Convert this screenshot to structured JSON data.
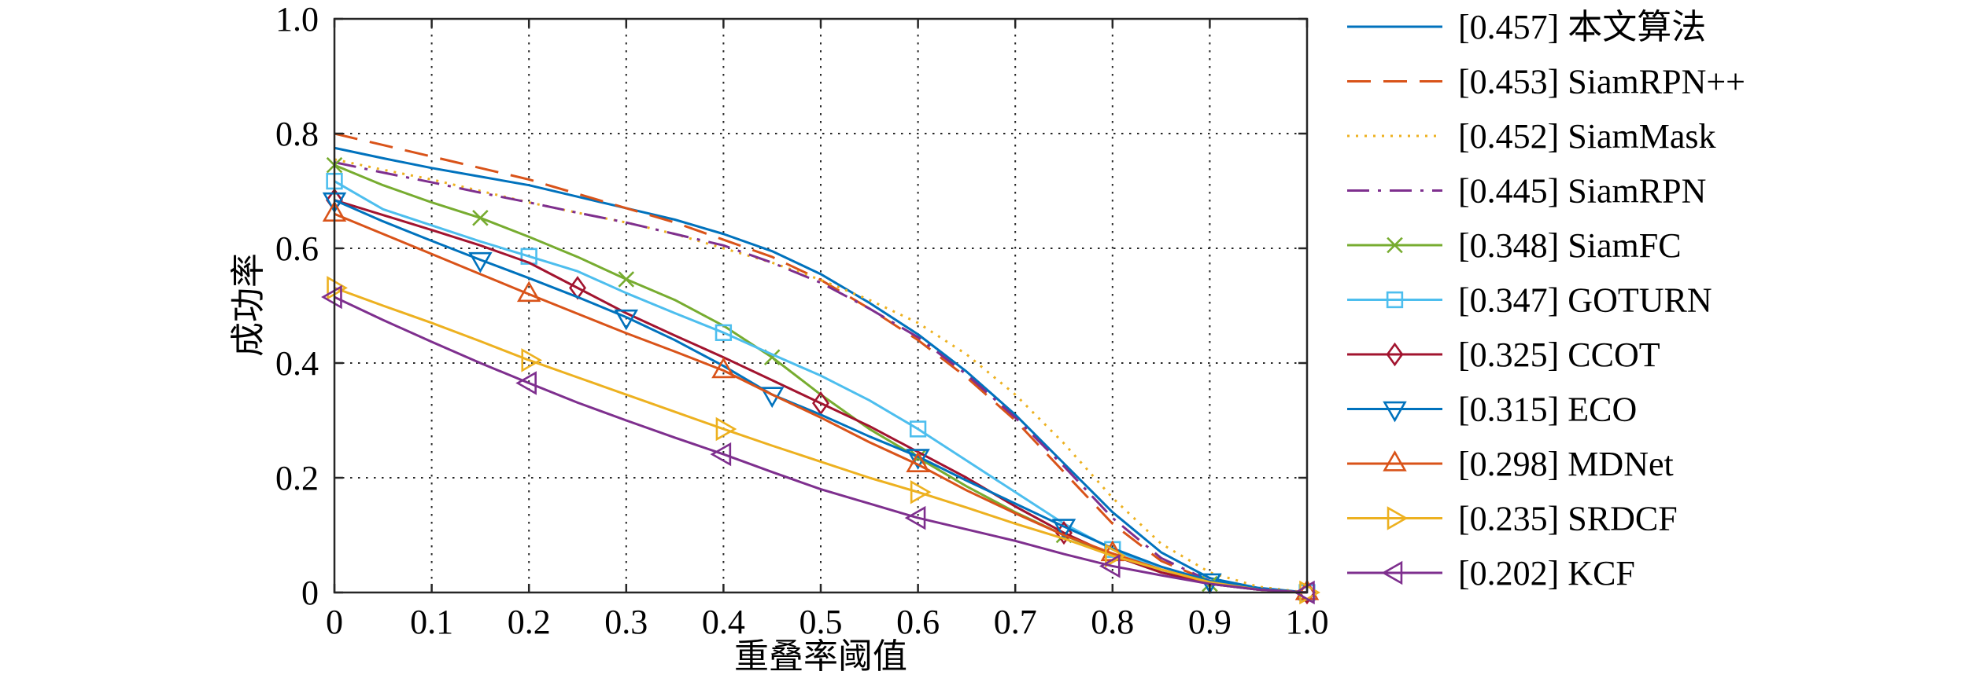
{
  "chart_data": {
    "type": "line",
    "xlabel": "重叠率阈值",
    "ylabel": "成功率",
    "xlim": [
      0,
      1
    ],
    "ylim": [
      0,
      1
    ],
    "x_ticks": [
      0,
      0.1,
      0.2,
      0.3,
      0.4,
      0.5,
      0.6,
      0.7,
      0.8,
      0.9,
      1.0
    ],
    "x_tick_labels": [
      "0",
      "0.1",
      "0.2",
      "0.3",
      "0.4",
      "0.5",
      "0.6",
      "0.7",
      "0.8",
      "0.9",
      "1.0"
    ],
    "y_ticks": [
      0,
      0.2,
      0.4,
      0.6,
      0.8,
      1.0
    ],
    "y_tick_labels": [
      "0",
      "0.2",
      "0.4",
      "0.6",
      "0.8",
      "1.0"
    ],
    "grid": true,
    "legend_position": "outside-right",
    "x": [
      0,
      0.05,
      0.1,
      0.15,
      0.2,
      0.25,
      0.3,
      0.35,
      0.4,
      0.45,
      0.5,
      0.55,
      0.6,
      0.65,
      0.7,
      0.75,
      0.8,
      0.85,
      0.9,
      0.95,
      1.0
    ],
    "series": [
      {
        "name": "[0.457] 本文算法",
        "color": "#0072BD",
        "line_style": "solid",
        "marker": "none",
        "marker_x": [],
        "values": [
          0.775,
          0.757,
          0.74,
          0.725,
          0.71,
          0.69,
          0.67,
          0.65,
          0.625,
          0.595,
          0.555,
          0.505,
          0.45,
          0.385,
          0.31,
          0.225,
          0.14,
          0.07,
          0.025,
          0.008,
          0
        ]
      },
      {
        "name": "[0.453] SiamRPN++",
        "color": "#D95319",
        "line_style": "dashed",
        "marker": "none",
        "marker_x": [],
        "values": [
          0.8,
          0.78,
          0.76,
          0.74,
          0.72,
          0.695,
          0.67,
          0.645,
          0.615,
          0.585,
          0.545,
          0.495,
          0.44,
          0.375,
          0.3,
          0.21,
          0.12,
          0.055,
          0.02,
          0.005,
          0
        ]
      },
      {
        "name": "[0.452] SiamMask",
        "color": "#EDB120",
        "line_style": "dotted",
        "marker": "none",
        "marker_x": [],
        "values": [
          0.755,
          0.737,
          0.72,
          0.7,
          0.68,
          0.662,
          0.645,
          0.625,
          0.6,
          0.575,
          0.545,
          0.51,
          0.47,
          0.415,
          0.345,
          0.26,
          0.165,
          0.085,
          0.035,
          0.01,
          0
        ]
      },
      {
        "name": "[0.445] SiamRPN",
        "color": "#7E2F8E",
        "line_style": "dashdot",
        "marker": "none",
        "marker_x": [],
        "values": [
          0.75,
          0.732,
          0.715,
          0.697,
          0.68,
          0.662,
          0.645,
          0.625,
          0.605,
          0.575,
          0.54,
          0.495,
          0.445,
          0.38,
          0.305,
          0.22,
          0.13,
          0.06,
          0.02,
          0.005,
          0
        ]
      },
      {
        "name": "[0.348] SiamFC",
        "color": "#77AC30",
        "line_style": "solid",
        "marker": "x",
        "marker_x": [
          0,
          0.15,
          0.3,
          0.45,
          0.6,
          0.75,
          0.9
        ],
        "values": [
          0.745,
          0.71,
          0.68,
          0.653,
          0.62,
          0.585,
          0.546,
          0.51,
          0.465,
          0.41,
          0.345,
          0.285,
          0.235,
          0.185,
          0.14,
          0.1,
          0.065,
          0.035,
          0.015,
          0.005,
          0
        ]
      },
      {
        "name": "[0.347] GOTURN",
        "color": "#4DBEEE",
        "line_style": "solid",
        "marker": "square",
        "marker_x": [
          0,
          0.2,
          0.4,
          0.6,
          0.8,
          1.0
        ],
        "values": [
          0.717,
          0.668,
          0.64,
          0.612,
          0.586,
          0.56,
          0.522,
          0.487,
          0.453,
          0.415,
          0.378,
          0.335,
          0.285,
          0.23,
          0.175,
          0.12,
          0.075,
          0.04,
          0.015,
          0.005,
          0
        ]
      },
      {
        "name": "[0.325] CCOT",
        "color": "#A2142F",
        "line_style": "solid",
        "marker": "diamond",
        "marker_x": [
          0,
          0.25,
          0.5,
          0.75,
          1.0
        ],
        "values": [
          0.684,
          0.658,
          0.632,
          0.605,
          0.575,
          0.531,
          0.487,
          0.448,
          0.41,
          0.37,
          0.33,
          0.29,
          0.245,
          0.2,
          0.15,
          0.104,
          0.065,
          0.035,
          0.015,
          0.005,
          0
        ]
      },
      {
        "name": "[0.315] ECO",
        "color": "#0072BD",
        "line_style": "solid",
        "marker": "triangle-down",
        "marker_x": [
          0,
          0.15,
          0.3,
          0.45,
          0.6,
          0.75,
          0.9
        ],
        "values": [
          0.684,
          0.647,
          0.613,
          0.58,
          0.548,
          0.515,
          0.48,
          0.44,
          0.395,
          0.345,
          0.31,
          0.272,
          0.237,
          0.195,
          0.155,
          0.115,
          0.077,
          0.045,
          0.02,
          0.007,
          0
        ]
      },
      {
        "name": "[0.298] MDNet",
        "color": "#D95319",
        "line_style": "solid",
        "marker": "triangle-up",
        "marker_x": [
          0,
          0.2,
          0.4,
          0.6,
          0.8,
          1.0
        ],
        "values": [
          0.66,
          0.625,
          0.59,
          0.555,
          0.52,
          0.486,
          0.452,
          0.42,
          0.387,
          0.345,
          0.305,
          0.262,
          0.223,
          0.178,
          0.138,
          0.1,
          0.068,
          0.04,
          0.017,
          0.005,
          0
        ]
      },
      {
        "name": "[0.235] SRDCF",
        "color": "#EDB120",
        "line_style": "solid",
        "marker": "triangle-right",
        "marker_x": [
          0,
          0.2,
          0.4,
          0.6,
          0.8,
          1.0
        ],
        "values": [
          0.531,
          0.5,
          0.47,
          0.438,
          0.405,
          0.375,
          0.345,
          0.315,
          0.285,
          0.256,
          0.228,
          0.2,
          0.175,
          0.148,
          0.12,
          0.094,
          0.064,
          0.04,
          0.018,
          0.005,
          0
        ]
      },
      {
        "name": "[0.202] KCF",
        "color": "#7E2F8E",
        "line_style": "solid",
        "marker": "triangle-left",
        "marker_x": [
          0,
          0.2,
          0.4,
          0.6,
          0.8,
          1.0
        ],
        "values": [
          0.515,
          0.475,
          0.437,
          0.4,
          0.365,
          0.331,
          0.3,
          0.27,
          0.241,
          0.21,
          0.18,
          0.155,
          0.13,
          0.11,
          0.09,
          0.067,
          0.046,
          0.03,
          0.015,
          0.005,
          0
        ]
      }
    ]
  }
}
